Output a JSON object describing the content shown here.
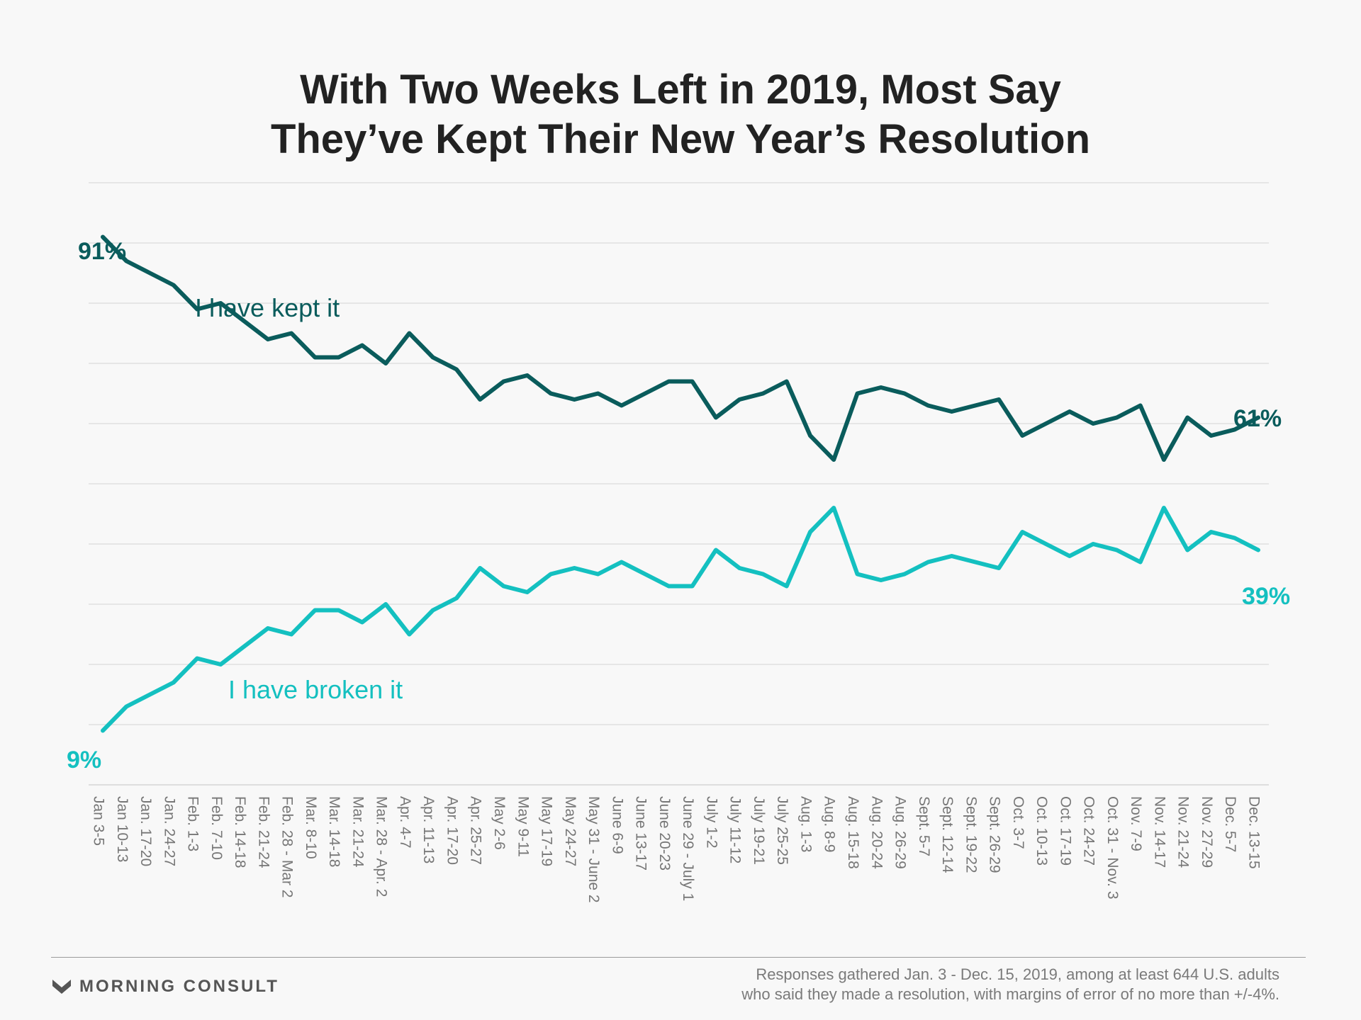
{
  "title": {
    "line1": "With Two Weeks Left in 2019, Most Say",
    "line2": "They’ve Kept Their New Year’s Resolution"
  },
  "chart_data": {
    "type": "line",
    "title": "With Two Weeks Left in 2019, Most Say They’ve Kept Their New Year’s Resolution",
    "xlabel": "",
    "ylabel": "",
    "ylim": [
      0,
      100
    ],
    "grid": true,
    "legend": "none",
    "categories": [
      "Jan 3-5",
      "Jan 10-13",
      "Jan. 17-20",
      "Jan. 24-27",
      "Feb. 1-3",
      "Feb. 7-10",
      "Feb. 14-18",
      "Feb. 21-24",
      "Feb. 28 - Mar 2",
      "Mar. 8-10",
      "Mar. 14-18",
      "Mar. 21-24",
      "Mar. 28 - Apr. 2",
      "Apr. 4-7",
      "Apr. 11-13",
      "Apr. 17-20",
      "Apr. 25-27",
      "May 2-6",
      "May 9-11",
      "May 17-19",
      "May 24-27",
      "May 31 - June 2",
      "June 6-9",
      "June 13-17",
      "June 20-23",
      "June 29 - July 1",
      "July 1-2",
      "July 11-12",
      "July 19-21",
      "July 25-25",
      "Aug. 1-3",
      "Aug. 8-9",
      "Aug. 15-18",
      "Aug. 20-24",
      "Aug. 26-29",
      "Sept. 5-7",
      "Sept. 12-14",
      "Sept. 19-22",
      "Sept. 26-29",
      "Oct. 3-7",
      "Oct. 10-13",
      "Oct. 17-19",
      "Oct. 24-27",
      "Oct. 31 - Nov. 3",
      "Nov. 7-9",
      "Nov. 14-17",
      "Nov. 21-24",
      "Nov. 27-29",
      "Dec. 5-7",
      "Dec. 13-15"
    ],
    "series": [
      {
        "name": "I have kept it",
        "color": "#0a5c5c",
        "values": [
          91,
          87,
          85,
          83,
          79,
          80,
          77,
          74,
          75,
          71,
          71,
          73,
          70,
          75,
          71,
          69,
          64,
          67,
          68,
          65,
          64,
          65,
          63,
          65,
          67,
          67,
          61,
          64,
          65,
          67,
          58,
          54,
          65,
          66,
          65,
          63,
          62,
          63,
          64,
          58,
          60,
          62,
          60,
          61,
          63,
          54,
          61,
          58,
          59,
          61
        ],
        "start_label": "91%",
        "end_label": "61%"
      },
      {
        "name": "I have broken it",
        "color": "#14c0c0",
        "values": [
          9,
          13,
          15,
          17,
          21,
          20,
          23,
          26,
          25,
          29,
          29,
          27,
          30,
          25,
          29,
          31,
          36,
          33,
          32,
          35,
          36,
          35,
          37,
          35,
          33,
          33,
          39,
          36,
          35,
          33,
          42,
          46,
          35,
          34,
          35,
          37,
          38,
          37,
          36,
          42,
          40,
          38,
          40,
          39,
          37,
          46,
          39,
          42,
          41,
          39
        ],
        "start_label": "9%",
        "end_label": "39%"
      }
    ]
  },
  "footer": {
    "brand": "MORNING CONSULT",
    "note_line1": "Responses gathered Jan. 3 - Dec. 15, 2019, among at least 644 U.S. adults",
    "note_line2": "who said they made a resolution, with margins of error of no more than +/-4%."
  }
}
